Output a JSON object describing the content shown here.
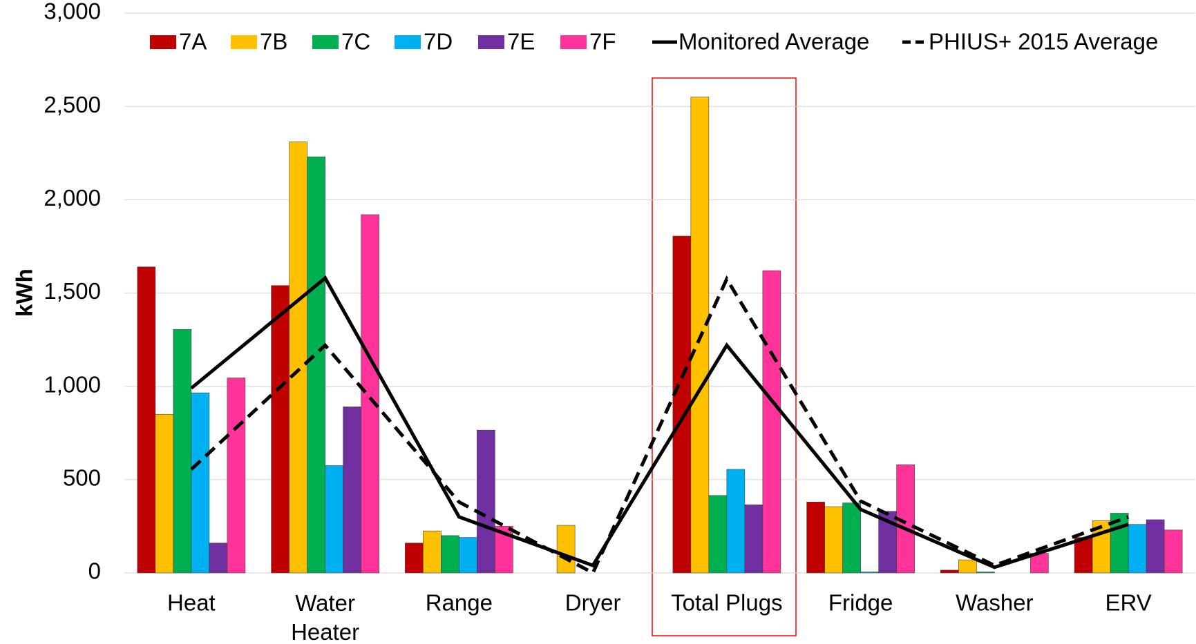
{
  "chart_data": {
    "type": "bar",
    "y_label": "kWh",
    "categories": [
      "Heat",
      "Water Heater",
      "Range",
      "Dryer",
      "Total Plugs",
      "Fridge",
      "Washer",
      "ERV"
    ],
    "series": [
      {
        "name": "7A",
        "color": "#c00000",
        "values": [
          1640,
          1540,
          160,
          0,
          1805,
          380,
          15,
          190
        ]
      },
      {
        "name": "7B",
        "color": "#ffc000",
        "values": [
          850,
          2310,
          225,
          255,
          2550,
          355,
          70,
          280
        ]
      },
      {
        "name": "7C",
        "color": "#00b050",
        "values": [
          1305,
          2230,
          200,
          0,
          415,
          375,
          5,
          320
        ]
      },
      {
        "name": "7D",
        "color": "#00b0f0",
        "values": [
          965,
          575,
          190,
          0,
          555,
          5,
          0,
          260
        ]
      },
      {
        "name": "7E",
        "color": "#7030a0",
        "values": [
          160,
          890,
          765,
          0,
          365,
          330,
          0,
          285
        ]
      },
      {
        "name": "7F",
        "color": "#ff3399",
        "values": [
          1045,
          1920,
          250,
          0,
          1620,
          580,
          105,
          230
        ]
      },
      {
        "name": "Monitored Average",
        "type": "line",
        "color": "#000000",
        "values": [
          990,
          1580,
          300,
          40,
          1220,
          340,
          30,
          260
        ]
      },
      {
        "name": "PHIUS+ 2015 Average",
        "type": "line",
        "dash": true,
        "color": "#000000",
        "values": [
          555,
          1220,
          380,
          0,
          1575,
          385,
          40,
          300
        ]
      }
    ],
    "ylim": [
      0,
      3000
    ],
    "yticks": [
      0,
      500,
      {
        "value": 1000,
        "label": "1,000"
      },
      {
        "value": 1500,
        "label": "1,500"
      },
      {
        "value": 2000,
        "label": "2,000"
      },
      {
        "value": 2500,
        "label": "2,500"
      },
      {
        "value": 3000,
        "label": "3,000"
      }
    ],
    "grid": true
  }
}
